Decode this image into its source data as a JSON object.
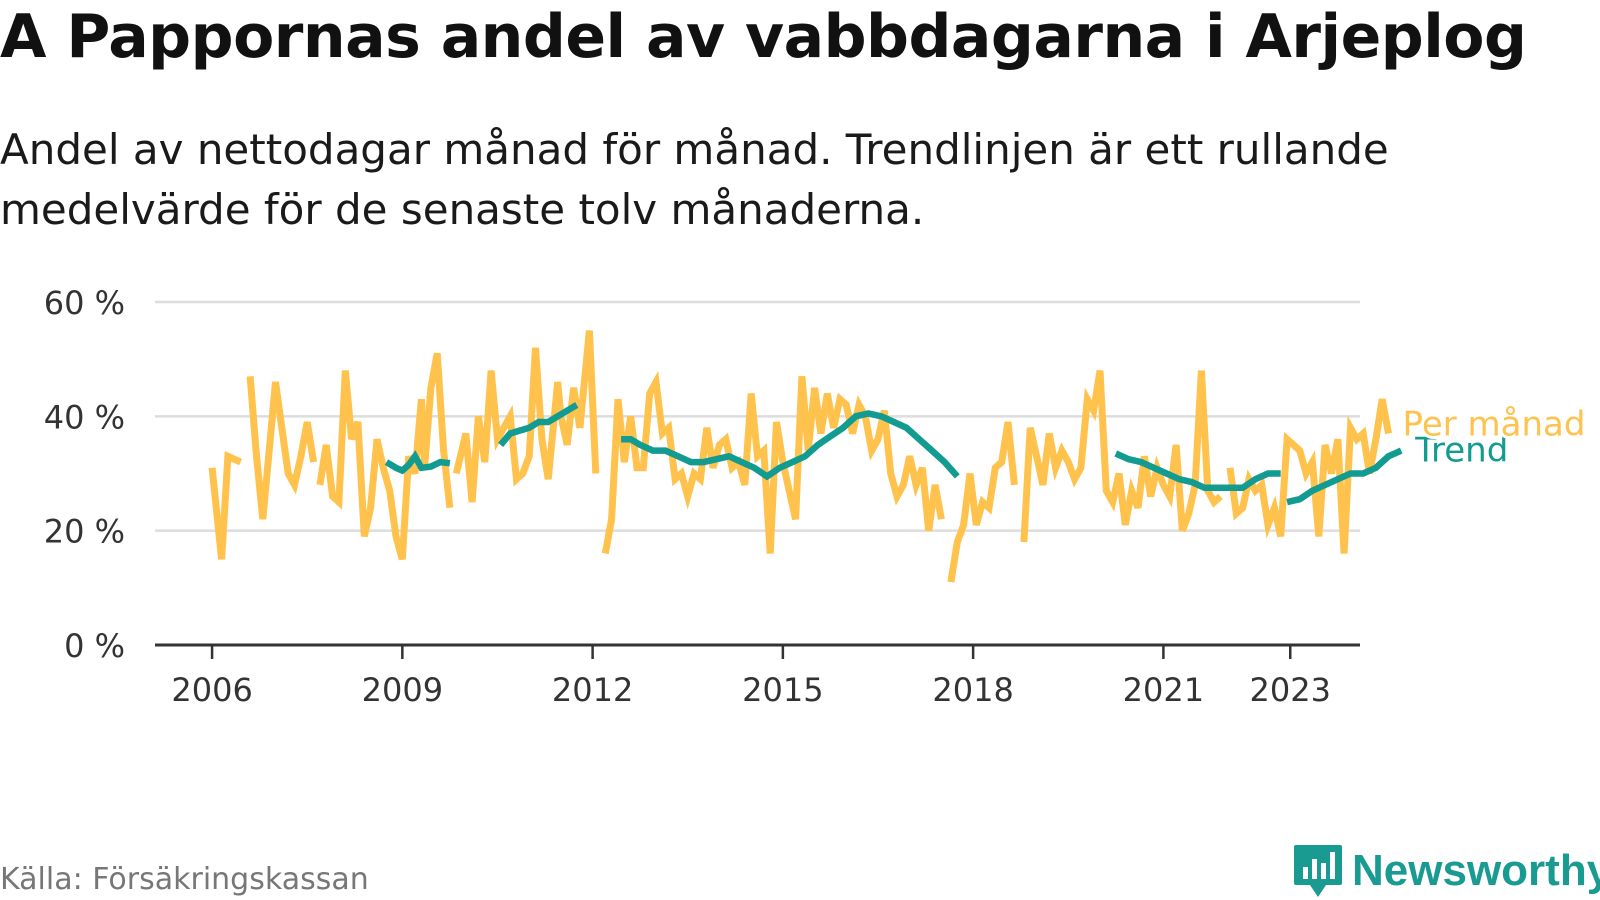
{
  "header": {
    "title": "A Pappornas andel av vabbdagarna i Arjeplog",
    "subtitle": "Andel av nettodagar månad för månad. Trendlinjen är ett rullande medelvärde för de senaste tolv månaderna."
  },
  "footer": {
    "source": "Källa: Försäkringskassan",
    "brand": "Newsworthy",
    "logo_icon": "bar-chart-icon"
  },
  "colors": {
    "monthly": "#ffc24d",
    "trend": "#129b91",
    "grid": "#dddddd",
    "axis": "#333333",
    "brand": "#1a9b92"
  },
  "chart_data": {
    "type": "line",
    "ylim": [
      0,
      60
    ],
    "xlim": [
      2005.1,
      2024.1
    ],
    "y_ticks": [
      0,
      20,
      40,
      60
    ],
    "y_tick_labels": [
      "0 %",
      "20 %",
      "40 %",
      "60 %"
    ],
    "x_ticks": [
      2006,
      2009,
      2012,
      2015,
      2018,
      2021,
      2023
    ],
    "x_tick_labels": [
      "2006",
      "2009",
      "2012",
      "2015",
      "2018",
      "2021",
      "2023"
    ],
    "grid": true,
    "legend": "inline-right",
    "series": [
      {
        "name": "Per månad",
        "color": "#ffc24d",
        "segments": [
          [
            [
              2006.0,
              31
            ],
            [
              2006.15,
              15
            ],
            [
              2006.25,
              33
            ],
            [
              2006.45,
              32
            ]
          ],
          [
            [
              2006.6,
              47
            ],
            [
              2006.7,
              33
            ],
            [
              2006.8,
              22
            ],
            [
              2006.9,
              34
            ],
            [
              2007.0,
              46
            ],
            [
              2007.1,
              38
            ],
            [
              2007.2,
              30
            ],
            [
              2007.3,
              28
            ],
            [
              2007.4,
              33
            ],
            [
              2007.5,
              39
            ],
            [
              2007.6,
              32
            ]
          ],
          [
            [
              2007.7,
              28
            ],
            [
              2007.8,
              35
            ],
            [
              2007.9,
              26
            ],
            [
              2008.0,
              25
            ],
            [
              2008.1,
              48
            ],
            [
              2008.2,
              36
            ],
            [
              2008.3,
              39
            ],
            [
              2008.4,
              19
            ],
            [
              2008.5,
              24
            ],
            [
              2008.6,
              36
            ],
            [
              2008.7,
              31
            ],
            [
              2008.8,
              27
            ],
            [
              2008.9,
              19
            ],
            [
              2009.0,
              15
            ],
            [
              2009.1,
              33
            ],
            [
              2009.2,
              30
            ],
            [
              2009.3,
              43
            ],
            [
              2009.35,
              31
            ],
            [
              2009.45,
              45
            ],
            [
              2009.55,
              51
            ],
            [
              2009.65,
              34
            ],
            [
              2009.75,
              24
            ]
          ],
          [
            [
              2009.85,
              30
            ],
            [
              2010.0,
              37
            ],
            [
              2010.1,
              25
            ],
            [
              2010.2,
              40
            ],
            [
              2010.3,
              32
            ],
            [
              2010.4,
              48
            ],
            [
              2010.5,
              36
            ],
            [
              2010.6,
              38
            ],
            [
              2010.7,
              40
            ],
            [
              2010.8,
              29
            ],
            [
              2010.9,
              30
            ],
            [
              2011.0,
              33
            ],
            [
              2011.1,
              52
            ],
            [
              2011.2,
              36
            ],
            [
              2011.3,
              29
            ],
            [
              2011.45,
              46
            ],
            [
              2011.5,
              40
            ],
            [
              2011.6,
              35
            ],
            [
              2011.7,
              45
            ],
            [
              2011.8,
              38
            ],
            [
              2011.95,
              55
            ],
            [
              2012.05,
              30
            ]
          ],
          [
            [
              2012.2,
              16
            ],
            [
              2012.3,
              22
            ],
            [
              2012.4,
              43
            ],
            [
              2012.5,
              32
            ],
            [
              2012.6,
              40
            ],
            [
              2012.7,
              31
            ],
            [
              2012.8,
              31
            ],
            [
              2012.9,
              44
            ],
            [
              2013.0,
              46
            ],
            [
              2013.1,
              37
            ],
            [
              2013.2,
              38
            ],
            [
              2013.3,
              29
            ],
            [
              2013.4,
              30
            ],
            [
              2013.5,
              26
            ],
            [
              2013.6,
              30
            ],
            [
              2013.7,
              29
            ],
            [
              2013.8,
              38
            ],
            [
              2013.9,
              31
            ],
            [
              2014.0,
              35
            ],
            [
              2014.1,
              36
            ],
            [
              2014.2,
              31
            ],
            [
              2014.3,
              32
            ],
            [
              2014.4,
              28
            ],
            [
              2014.5,
              44
            ],
            [
              2014.6,
              33
            ],
            [
              2014.7,
              34
            ],
            [
              2014.8,
              16
            ],
            [
              2014.9,
              39
            ],
            [
              2015.0,
              32
            ],
            [
              2015.1,
              27
            ],
            [
              2015.2,
              22
            ],
            [
              2015.3,
              47
            ],
            [
              2015.4,
              34
            ],
            [
              2015.5,
              45
            ],
            [
              2015.6,
              37
            ],
            [
              2015.7,
              44
            ],
            [
              2015.8,
              38
            ],
            [
              2015.9,
              43
            ],
            [
              2016.0,
              42
            ],
            [
              2016.1,
              37
            ],
            [
              2016.2,
              42
            ],
            [
              2016.3,
              40
            ],
            [
              2016.4,
              34
            ],
            [
              2016.5,
              36
            ],
            [
              2016.6,
              41
            ],
            [
              2016.7,
              30
            ],
            [
              2016.8,
              26
            ],
            [
              2016.9,
              28
            ],
            [
              2017.0,
              33
            ],
            [
              2017.1,
              28
            ],
            [
              2017.2,
              31
            ],
            [
              2017.3,
              20
            ],
            [
              2017.4,
              28
            ],
            [
              2017.5,
              22
            ]
          ],
          [
            [
              2017.65,
              11
            ],
            [
              2017.75,
              18
            ],
            [
              2017.85,
              21
            ],
            [
              2017.95,
              30
            ],
            [
              2018.05,
              21
            ],
            [
              2018.15,
              25
            ],
            [
              2018.25,
              24
            ],
            [
              2018.35,
              31
            ],
            [
              2018.45,
              32
            ],
            [
              2018.55,
              39
            ],
            [
              2018.65,
              28
            ]
          ],
          [
            [
              2018.8,
              18
            ],
            [
              2018.9,
              38
            ],
            [
              2019.0,
              33
            ],
            [
              2019.1,
              28
            ],
            [
              2019.2,
              37
            ],
            [
              2019.3,
              31
            ],
            [
              2019.4,
              34
            ],
            [
              2019.5,
              32
            ],
            [
              2019.6,
              29
            ],
            [
              2019.7,
              31
            ],
            [
              2019.8,
              43
            ],
            [
              2019.9,
              41
            ],
            [
              2020.0,
              48
            ],
            [
              2020.1,
              27
            ],
            [
              2020.2,
              25
            ],
            [
              2020.3,
              30
            ],
            [
              2020.4,
              21
            ],
            [
              2020.5,
              27
            ],
            [
              2020.6,
              24
            ],
            [
              2020.7,
              33
            ],
            [
              2020.8,
              26
            ],
            [
              2020.9,
              31
            ],
            [
              2021.0,
              28
            ],
            [
              2021.1,
              26
            ],
            [
              2021.2,
              35
            ],
            [
              2021.3,
              20
            ],
            [
              2021.4,
              23
            ],
            [
              2021.5,
              28
            ],
            [
              2021.6,
              48
            ],
            [
              2021.7,
              27
            ],
            [
              2021.8,
              25
            ],
            [
              2021.9,
              26
            ]
          ],
          [
            [
              2022.05,
              31
            ],
            [
              2022.15,
              23
            ],
            [
              2022.25,
              24
            ],
            [
              2022.35,
              29
            ],
            [
              2022.45,
              27
            ],
            [
              2022.55,
              28
            ],
            [
              2022.65,
              21
            ],
            [
              2022.75,
              24
            ],
            [
              2022.85,
              19
            ],
            [
              2022.95,
              36
            ],
            [
              2023.05,
              35
            ],
            [
              2023.15,
              34
            ],
            [
              2023.25,
              30
            ],
            [
              2023.35,
              32
            ],
            [
              2023.45,
              19
            ],
            [
              2023.55,
              35
            ],
            [
              2023.65,
              30
            ],
            [
              2023.75,
              36
            ],
            [
              2023.85,
              16
            ],
            [
              2023.95,
              38
            ],
            [
              2024.05,
              36
            ],
            [
              2024.15,
              37
            ],
            [
              2024.25,
              30
            ],
            [
              2024.35,
              36
            ],
            [
              2024.45,
              43
            ],
            [
              2024.55,
              37
            ]
          ]
        ]
      },
      {
        "name": "Trend",
        "color": "#129b91",
        "segments": [
          [
            [
              2008.75,
              32
            ],
            [
              2008.9,
              31
            ],
            [
              2009.0,
              30.5
            ],
            [
              2009.1,
              31.5
            ],
            [
              2009.2,
              33
            ],
            [
              2009.3,
              31
            ],
            [
              2009.45,
              31.2
            ],
            [
              2009.6,
              32
            ],
            [
              2009.75,
              31.8
            ]
          ],
          [
            [
              2010.55,
              35
            ],
            [
              2010.7,
              37
            ],
            [
              2010.85,
              37.5
            ],
            [
              2011.0,
              38
            ],
            [
              2011.15,
              39
            ],
            [
              2011.3,
              39
            ],
            [
              2011.45,
              40
            ],
            [
              2011.6,
              41
            ],
            [
              2011.75,
              42
            ]
          ],
          [
            [
              2012.45,
              36
            ],
            [
              2012.6,
              36
            ],
            [
              2012.75,
              35
            ],
            [
              2012.95,
              34
            ],
            [
              2013.15,
              34
            ],
            [
              2013.35,
              33
            ],
            [
              2013.55,
              32
            ],
            [
              2013.75,
              32
            ],
            [
              2013.95,
              32.5
            ],
            [
              2014.15,
              33
            ],
            [
              2014.35,
              32
            ],
            [
              2014.55,
              31
            ],
            [
              2014.75,
              29.5
            ],
            [
              2014.95,
              31
            ],
            [
              2015.15,
              32
            ],
            [
              2015.35,
              33
            ],
            [
              2015.55,
              35
            ],
            [
              2015.75,
              36.5
            ],
            [
              2015.95,
              38
            ],
            [
              2016.15,
              40
            ],
            [
              2016.35,
              40.5
            ],
            [
              2016.55,
              40
            ],
            [
              2016.75,
              39
            ],
            [
              2016.95,
              38
            ],
            [
              2017.15,
              36
            ],
            [
              2017.35,
              34
            ],
            [
              2017.55,
              32
            ],
            [
              2017.75,
              29.5
            ]
          ],
          [
            [
              2020.25,
              33.5
            ],
            [
              2020.45,
              32.5
            ],
            [
              2020.65,
              32
            ],
            [
              2020.85,
              31
            ],
            [
              2021.05,
              30
            ],
            [
              2021.25,
              29
            ],
            [
              2021.45,
              28.5
            ],
            [
              2021.65,
              27.5
            ],
            [
              2021.85,
              27.5
            ],
            [
              2022.05,
              27.5
            ],
            [
              2022.25,
              27.5
            ],
            [
              2022.45,
              29
            ],
            [
              2022.65,
              30
            ],
            [
              2022.85,
              30
            ]
          ],
          [
            [
              2022.95,
              25
            ],
            [
              2023.15,
              25.5
            ],
            [
              2023.35,
              27
            ],
            [
              2023.55,
              28
            ],
            [
              2023.75,
              29
            ],
            [
              2023.95,
              30
            ],
            [
              2024.15,
              30
            ],
            [
              2024.35,
              31
            ],
            [
              2024.55,
              33
            ],
            [
              2024.75,
              34
            ]
          ]
        ]
      }
    ]
  }
}
